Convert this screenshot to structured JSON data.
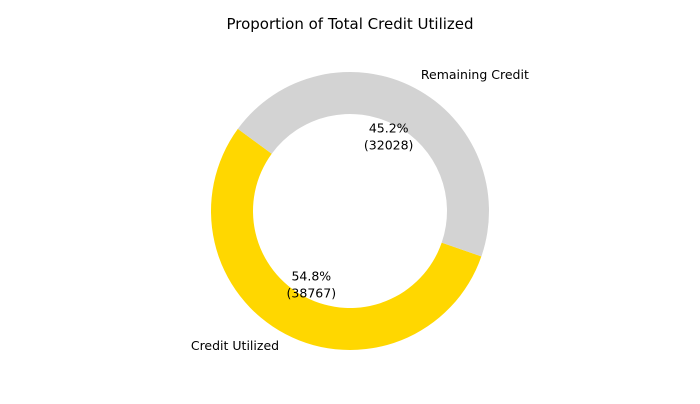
{
  "chart_data": {
    "type": "pie",
    "variant": "donut",
    "title": "Proportion of Total Credit Utilized",
    "slices": [
      {
        "label": "Credit Utilized",
        "value": 38767,
        "percent_label": "54.8%",
        "value_label": "(38767)",
        "color": "#FFD700"
      },
      {
        "label": "Remaining Credit",
        "value": 32028,
        "percent_label": "45.2%",
        "value_label": "(32028)",
        "color": "#D3D3D3"
      }
    ],
    "legend": "none"
  }
}
